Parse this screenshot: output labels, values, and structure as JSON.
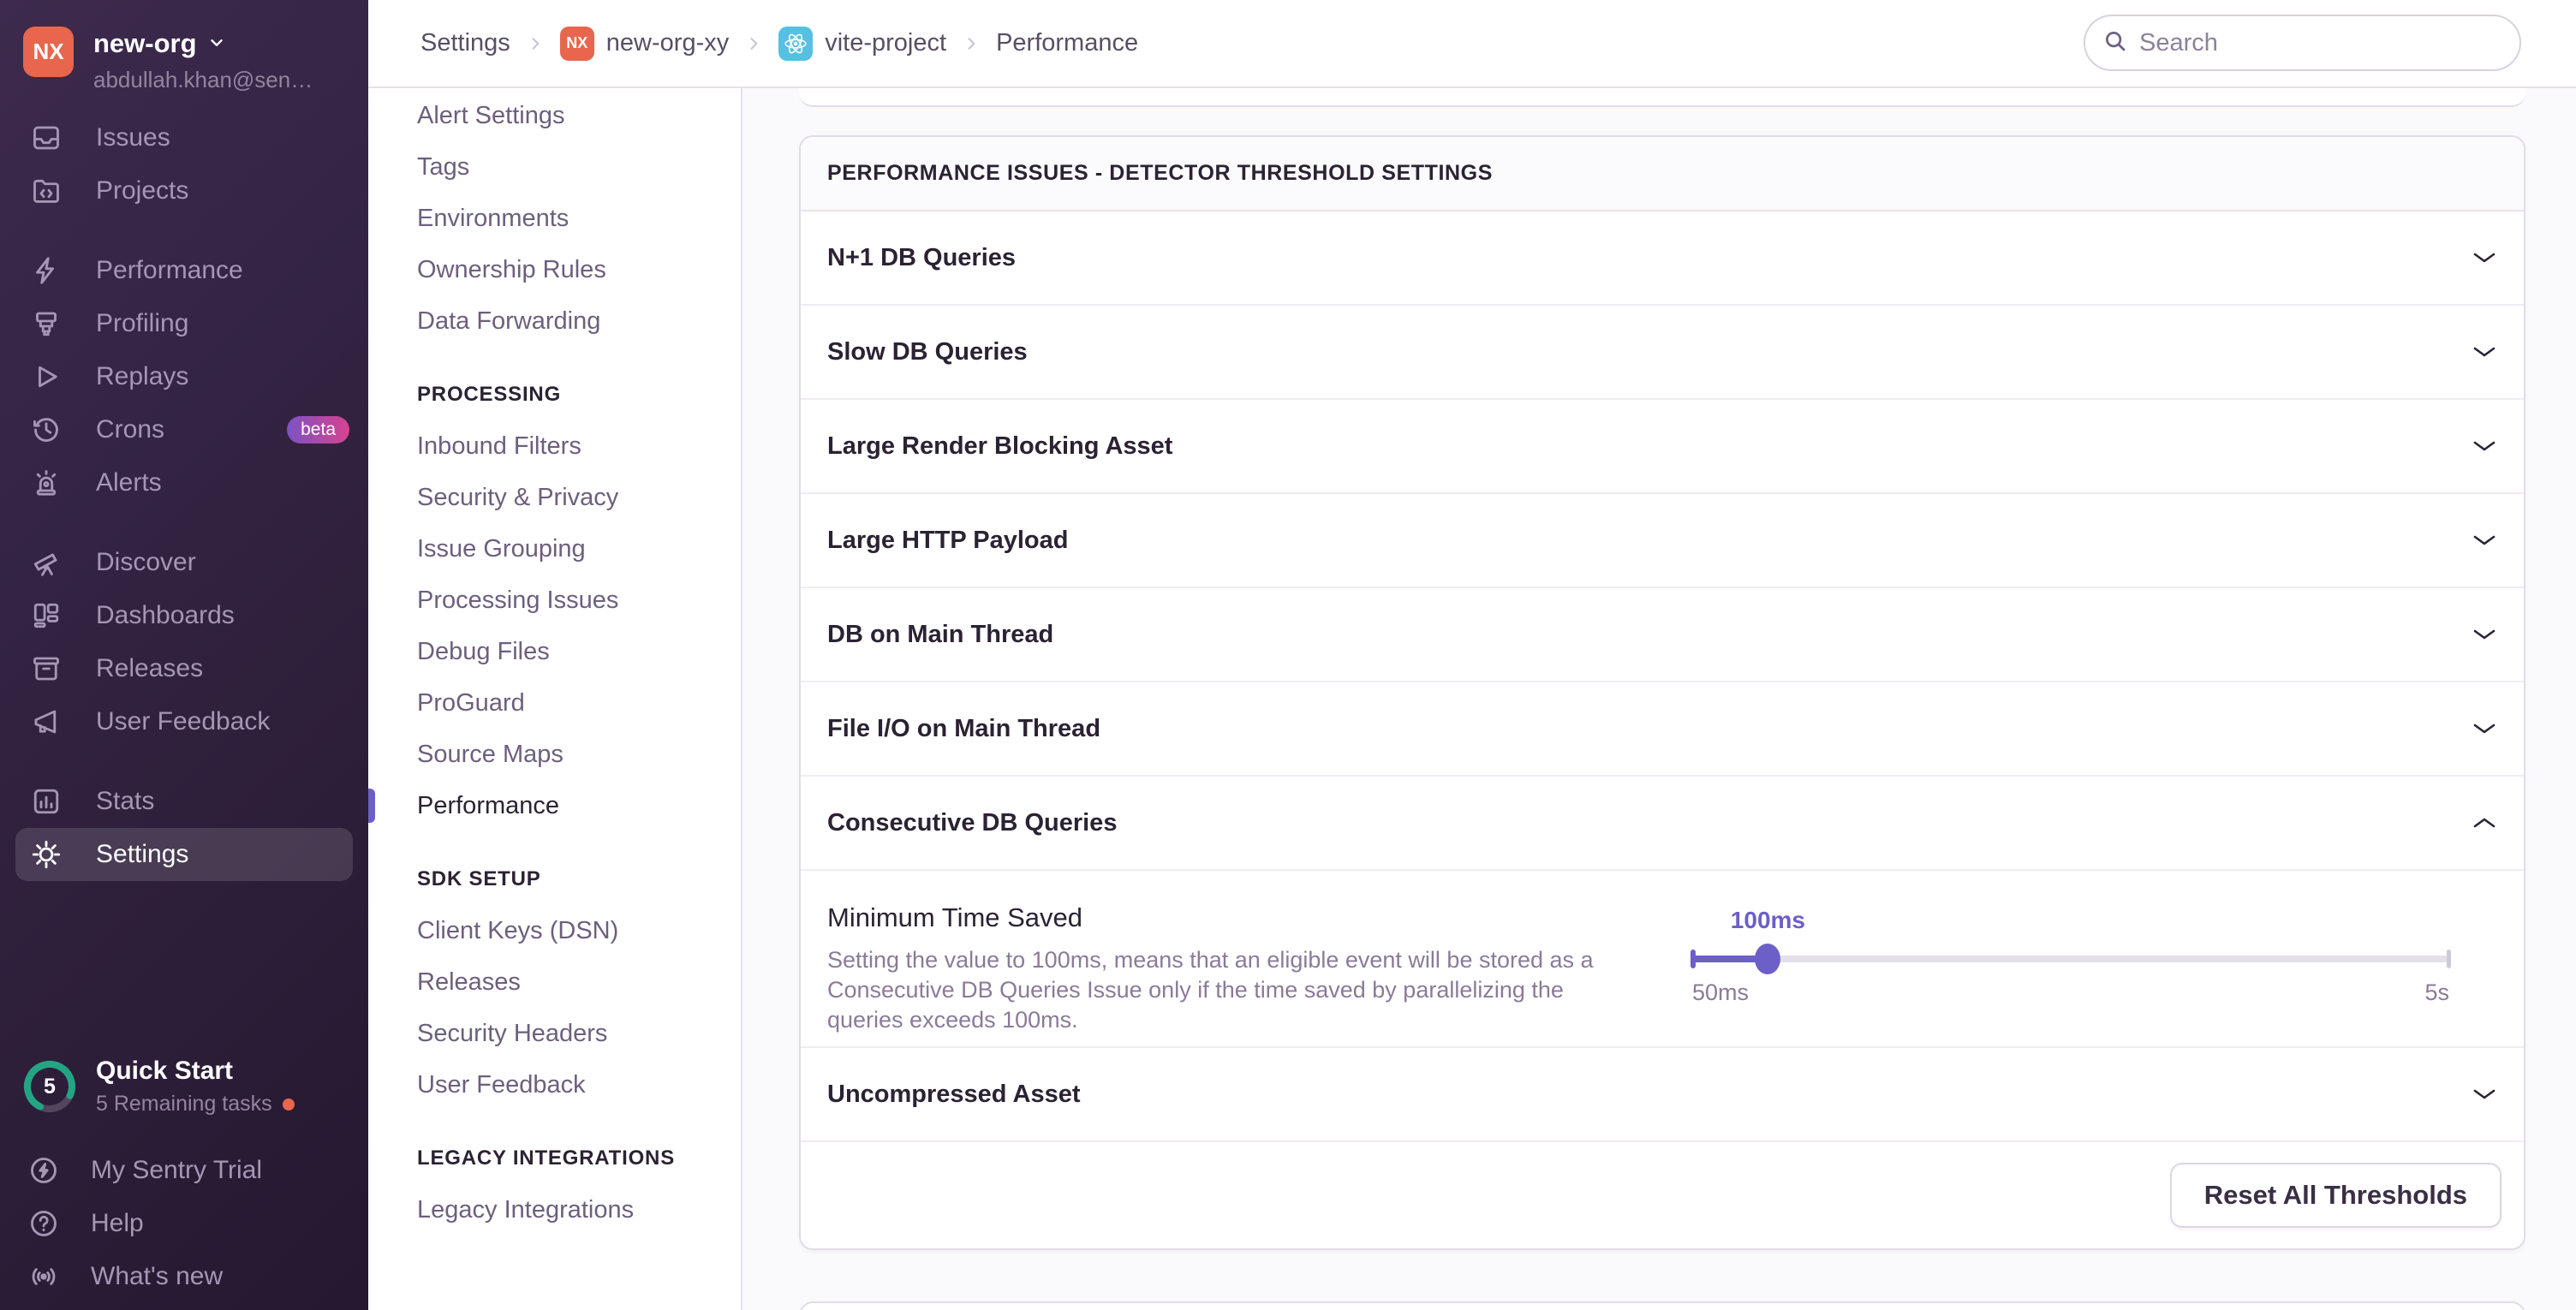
{
  "colors": {
    "accent": "#6c5fc7",
    "orange": "#e7664d",
    "react_blue": "#56c0e2",
    "progress_teal": "#23a583",
    "beta_gradient_from": "#7c52c4",
    "beta_gradient_to": "#d9428f",
    "text_dark": "#2b2233",
    "text_muted": "#8a7b99"
  },
  "sidebar": {
    "org": {
      "name": "new-org",
      "email": "abdullah.khan@sen…",
      "avatar_initials": "NX"
    },
    "sections": [
      {
        "items": [
          {
            "label": "Issues",
            "icon": "issues"
          },
          {
            "label": "Projects",
            "icon": "projects"
          }
        ]
      },
      {
        "items": [
          {
            "label": "Performance",
            "icon": "lightning"
          },
          {
            "label": "Profiling",
            "icon": "profiling"
          },
          {
            "label": "Replays",
            "icon": "play"
          },
          {
            "label": "Crons",
            "icon": "clock",
            "badge": "beta"
          },
          {
            "label": "Alerts",
            "icon": "siren"
          }
        ]
      },
      {
        "items": [
          {
            "label": "Discover",
            "icon": "telescope"
          },
          {
            "label": "Dashboards",
            "icon": "dashboard"
          },
          {
            "label": "Releases",
            "icon": "archive"
          },
          {
            "label": "User Feedback",
            "icon": "megaphone"
          }
        ]
      },
      {
        "items": [
          {
            "label": "Stats",
            "icon": "bar-chart"
          },
          {
            "label": "Settings",
            "icon": "gear",
            "active": true
          }
        ]
      }
    ],
    "quick_start": {
      "title": "Quick Start",
      "subtitle": "5 Remaining tasks",
      "count": "5"
    },
    "footer_items": [
      {
        "label": "My Sentry Trial",
        "icon": "bolt-circle"
      },
      {
        "label": "Help",
        "icon": "question-circle"
      },
      {
        "label": "What's new",
        "icon": "broadcast"
      }
    ]
  },
  "header": {
    "breadcrumb": [
      {
        "label": "Settings"
      },
      {
        "label": "new-org-xy",
        "icon": "nx"
      },
      {
        "label": "vite-project",
        "icon": "react"
      },
      {
        "label": "Performance"
      }
    ],
    "search_placeholder": "Search"
  },
  "settings_nav": {
    "groups": [
      {
        "header": null,
        "items": [
          "Alert Settings",
          "Tags",
          "Environments",
          "Ownership Rules",
          "Data Forwarding"
        ]
      },
      {
        "header": "PROCESSING",
        "items": [
          "Inbound Filters",
          "Security & Privacy",
          "Issue Grouping",
          "Processing Issues",
          "Debug Files",
          "ProGuard",
          "Source Maps",
          "Performance"
        ],
        "active": "Performance"
      },
      {
        "header": "SDK SETUP",
        "items": [
          "Client Keys (DSN)",
          "Releases",
          "Security Headers",
          "User Feedback"
        ]
      },
      {
        "header": "LEGACY INTEGRATIONS",
        "items": [
          "Legacy Integrations"
        ]
      }
    ]
  },
  "main": {
    "panel_title": "PERFORMANCE ISSUES - DETECTOR THRESHOLD SETTINGS",
    "rows": [
      "N+1 DB Queries",
      "Slow DB Queries",
      "Large Render Blocking Asset",
      "Large HTTP Payload",
      "DB on Main Thread",
      "File I/O on Main Thread",
      "Consecutive DB Queries"
    ],
    "expanded_row": "Consecutive DB Queries",
    "expanded": {
      "field_title": "Minimum Time Saved",
      "description": "Setting the value to 100ms, means that an eligible event will be stored as a Consecutive DB Queries Issue only if the time saved by parallelizing the queries exceeds 100ms.",
      "slider": {
        "value": "100ms",
        "min": "50ms",
        "max": "5s",
        "percent": 10
      }
    },
    "rows_after": [
      "Uncompressed Asset"
    ],
    "footer_button": "Reset All Thresholds"
  }
}
